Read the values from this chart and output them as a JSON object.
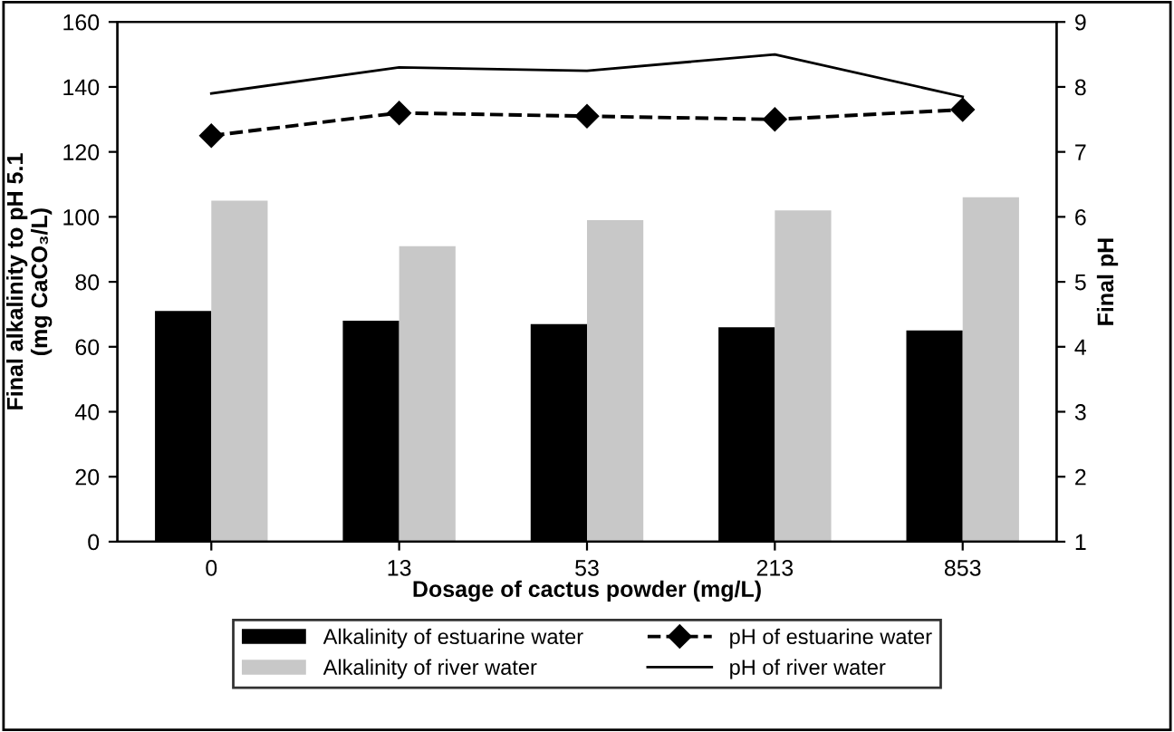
{
  "chart_data": {
    "type": "bar",
    "xlabel": "Dosage of cactus powder (mg/L)",
    "ylabel": "Final alkalinity to pH 5.1\n(mg CaCO₃/L)",
    "y2label": "Final pH",
    "categories": [
      "0",
      "13",
      "53",
      "213",
      "853"
    ],
    "series": [
      {
        "name": "Alkalinity of estuarine water",
        "color": "#000000",
        "values": [
          71,
          68,
          67,
          66,
          65
        ]
      },
      {
        "name": "Alkalinity of river water",
        "color": "#c8c8c8",
        "values": [
          105,
          91,
          99,
          102,
          106
        ]
      },
      {
        "name": "pH of estuarine water",
        "type": "line",
        "axis": "y2",
        "color": "#000000",
        "marker": "diamond",
        "line_style": "dashed",
        "values": [
          7.25,
          7.6,
          7.55,
          7.5,
          7.65
        ]
      },
      {
        "name": "pH of river water",
        "type": "line",
        "axis": "y2",
        "color": "#000000",
        "marker": "none",
        "line_style": "solid",
        "values": [
          7.9,
          8.3,
          8.25,
          8.5,
          7.85
        ]
      }
    ],
    "ylim": [
      0,
      160
    ],
    "yticks": [
      0,
      20,
      40,
      60,
      80,
      100,
      120,
      140,
      160
    ],
    "y2lim": [
      1,
      9
    ],
    "y2ticks": [
      1,
      2,
      3,
      4,
      5,
      6,
      7,
      8,
      9
    ],
    "grid": false,
    "legend": "bottom"
  }
}
